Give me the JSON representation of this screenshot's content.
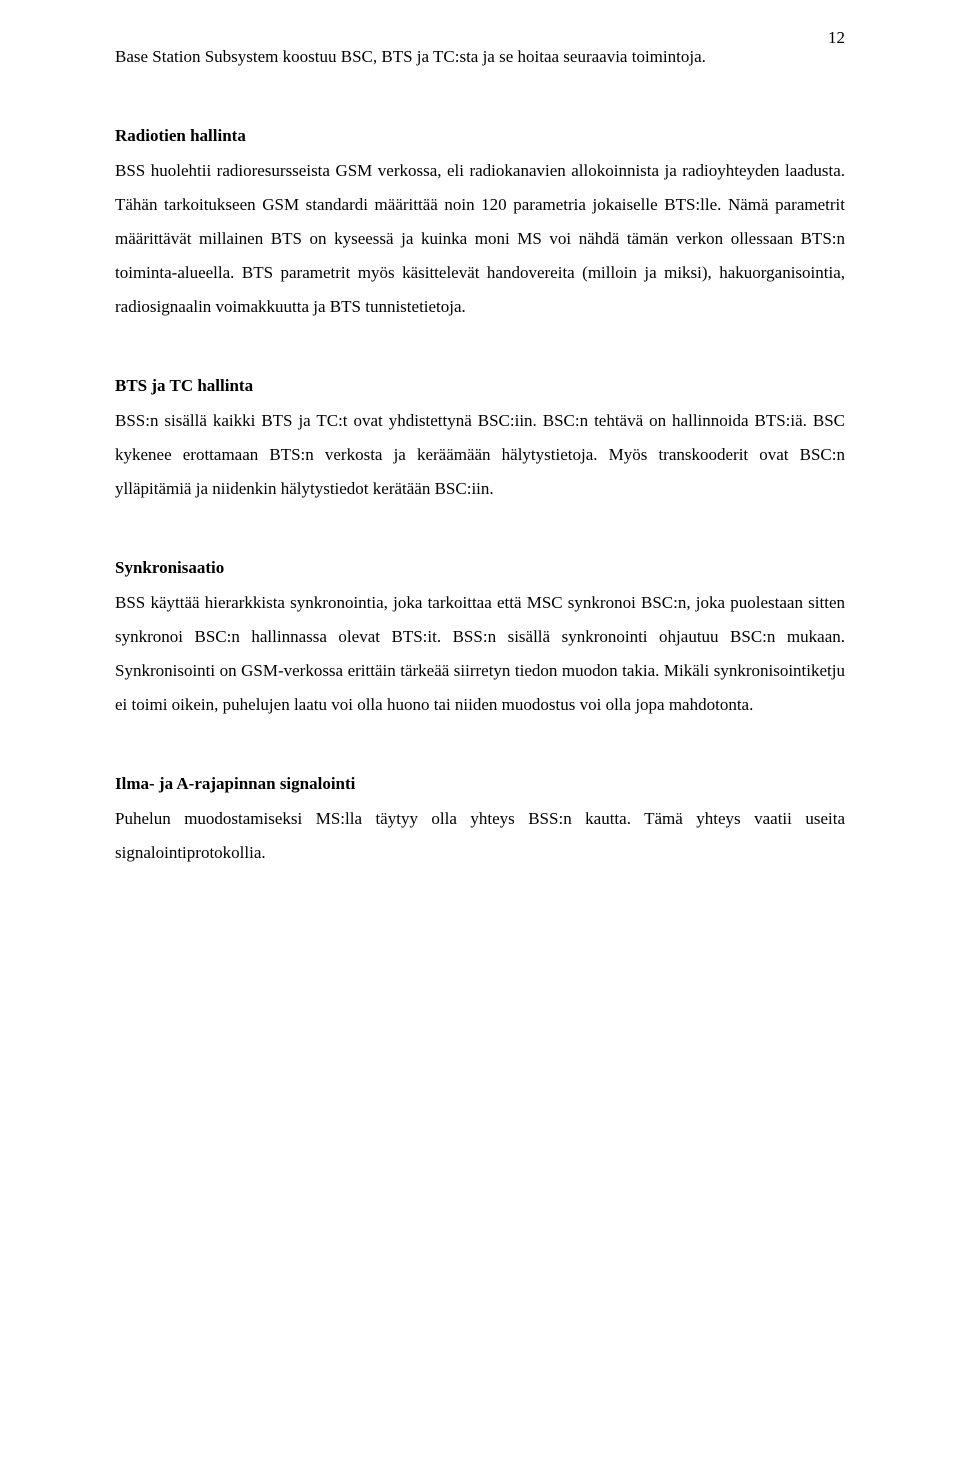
{
  "pageNumber": "12",
  "intro": "Base Station Subsystem koostuu BSC, BTS ja TC:sta ja se hoitaa seuraavia toimintoja.",
  "sections": [
    {
      "heading": "Radiotien hallinta",
      "para": "BSS huolehtii radioresursseista GSM verkossa, eli radiokanavien allokoinnista ja radioyhteyden laadusta. Tähän tarkoitukseen GSM standardi määrittää noin 120 parametria jokaiselle BTS:lle. Nämä parametrit määrittävät millainen BTS on kyseessä ja kuinka moni MS voi nähdä tämän verkon ollessaan BTS:n toiminta-alueella. BTS parametrit myös käsittelevät handovereita (milloin ja miksi), hakuorganisointia, radiosignaalin voimakkuutta ja BTS tunnistetietoja."
    },
    {
      "heading": "BTS ja TC hallinta",
      "para": "BSS:n sisällä kaikki BTS ja TC:t ovat yhdistettynä BSC:iin. BSC:n tehtävä on hallinnoida BTS:iä. BSC kykenee erottamaan BTS:n verkosta ja keräämään hälytystietoja. Myös transkooderit ovat BSC:n ylläpitämiä ja niidenkin hälytystiedot kerätään BSC:iin."
    },
    {
      "heading": "Synkronisaatio",
      "para": "BSS käyttää hierarkkista synkronointia, joka tarkoittaa että MSC synkronoi BSC:n, joka puolestaan sitten synkronoi BSC:n hallinnassa olevat BTS:it. BSS:n sisällä synkronointi ohjautuu BSC:n mukaan. Synkronisointi on GSM-verkossa erittäin tärkeää siirretyn tiedon muodon takia. Mikäli synkronisointiketju ei toimi oikein, puhelujen laatu voi olla huono tai niiden muodostus voi olla jopa mahdotonta."
    },
    {
      "heading": "Ilma- ja A-rajapinnan signalointi",
      "para": "Puhelun muodostamiseksi MS:lla täytyy olla yhteys BSS:n kautta. Tämä yhteys vaatii useita signalointiprotokollia."
    }
  ]
}
